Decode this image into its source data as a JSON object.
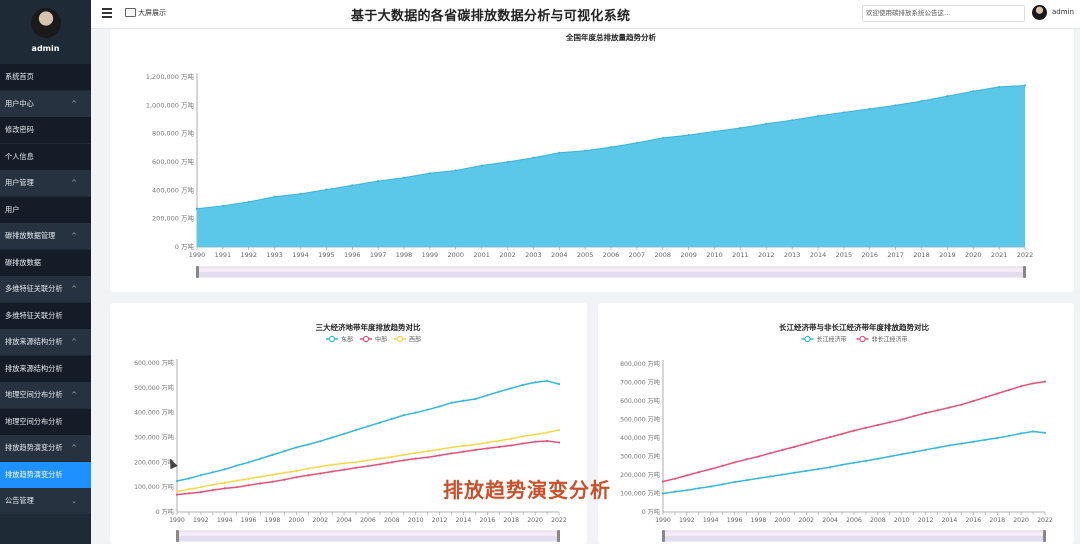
{
  "sidebar": {
    "username": "admin",
    "items": [
      {
        "label": "系统首页",
        "kind": "sub",
        "chevron": ""
      },
      {
        "label": "用户中心",
        "kind": "group",
        "chevron": "^"
      },
      {
        "label": "修改密码",
        "kind": "sub",
        "chevron": ""
      },
      {
        "label": "个人信息",
        "kind": "sub",
        "chevron": ""
      },
      {
        "label": "用户管理",
        "kind": "group",
        "chevron": "^"
      },
      {
        "label": "用户",
        "kind": "sub",
        "chevron": ""
      },
      {
        "label": "碳排放数据管理",
        "kind": "group",
        "chevron": "^"
      },
      {
        "label": "碳排放数据",
        "kind": "sub",
        "chevron": ""
      },
      {
        "label": "多维特征关联分析",
        "kind": "group",
        "chevron": "^"
      },
      {
        "label": "多维特征关联分析",
        "kind": "sub",
        "chevron": ""
      },
      {
        "label": "排放来源结构分析",
        "kind": "group",
        "chevron": "^"
      },
      {
        "label": "排放来源结构分析",
        "kind": "sub",
        "chevron": ""
      },
      {
        "label": "地理空间分布分析",
        "kind": "group",
        "chevron": "^"
      },
      {
        "label": "地理空间分布分析",
        "kind": "sub",
        "chevron": ""
      },
      {
        "label": "排放趋势演变分析",
        "kind": "group",
        "chevron": "^"
      },
      {
        "label": "排放趋势演变分析",
        "kind": "active",
        "chevron": ""
      },
      {
        "label": "公告管理",
        "kind": "group",
        "chevron": "⌄"
      }
    ]
  },
  "header": {
    "screen_label": "大屏展示",
    "title": "基于大数据的各省碳排放数据分析与可视化系统",
    "notice": "欢迎使用碳排放系统公告这...",
    "username": "admin"
  },
  "overlay_text": "排放趋势演变分析",
  "colors": {
    "area": "#5bc8ea",
    "east": "#37b8d6",
    "central": "#e2537a",
    "west": "#f2d94a",
    "yangtze": "#37b8d6",
    "non_yangtze": "#e2537a"
  },
  "chart_data": [
    {
      "type": "area",
      "title": "全国年度总排放量趋势分析",
      "x": [
        1990,
        1991,
        1992,
        1993,
        1994,
        1995,
        1996,
        1997,
        1998,
        1999,
        2000,
        2001,
        2002,
        2003,
        2004,
        2005,
        2006,
        2007,
        2008,
        2009,
        2010,
        2011,
        2012,
        2013,
        2014,
        2015,
        2016,
        2017,
        2018,
        2019,
        2020,
        2021,
        2022
      ],
      "series": [
        {
          "values": [
            270000,
            290000,
            318000,
            355000,
            375000,
            405000,
            435000,
            465000,
            490000,
            520000,
            540000,
            575000,
            600000,
            630000,
            665000,
            680000,
            705000,
            735000,
            770000,
            790000,
            815000,
            840000,
            870000,
            895000,
            925000,
            950000,
            975000,
            1000000,
            1030000,
            1065000,
            1100000,
            1130000,
            1140000
          ]
        }
      ],
      "ylim": [
        0,
        1200000
      ],
      "yticks": [
        "0 万吨",
        "200,000 万吨",
        "400,000 万吨",
        "600,000 万吨",
        "800,000 万吨",
        "1,000,000 万吨",
        "1,200,000 万吨"
      ],
      "grid": false
    },
    {
      "type": "line",
      "title": "三大经济地带年度排放趋势对比",
      "x": [
        1990,
        1991,
        1992,
        1993,
        1994,
        1995,
        1996,
        1997,
        1998,
        1999,
        2000,
        2001,
        2002,
        2003,
        2004,
        2005,
        2006,
        2007,
        2008,
        2009,
        2010,
        2011,
        2012,
        2013,
        2014,
        2015,
        2016,
        2017,
        2018,
        2019,
        2020,
        2021,
        2022
      ],
      "series": [
        {
          "name": "东部",
          "values": [
            125000,
            135000,
            148000,
            160000,
            172000,
            187000,
            200000,
            215000,
            230000,
            245000,
            260000,
            272000,
            285000,
            300000,
            315000,
            330000,
            345000,
            360000,
            375000,
            390000,
            400000,
            412000,
            425000,
            440000,
            448000,
            455000,
            470000,
            485000,
            498000,
            512000,
            522000,
            528000,
            515000
          ]
        },
        {
          "name": "中部",
          "values": [
            70000,
            75000,
            80000,
            88000,
            95000,
            100000,
            108000,
            115000,
            122000,
            130000,
            140000,
            148000,
            155000,
            163000,
            170000,
            178000,
            185000,
            192000,
            200000,
            208000,
            215000,
            220000,
            228000,
            236000,
            243000,
            250000,
            256000,
            262000,
            268000,
            276000,
            283000,
            286000,
            280000
          ]
        },
        {
          "name": "西部",
          "values": [
            82000,
            92000,
            100000,
            110000,
            118000,
            126000,
            134000,
            142000,
            150000,
            158000,
            165000,
            175000,
            183000,
            190000,
            196000,
            200000,
            208000,
            215000,
            222000,
            230000,
            238000,
            245000,
            252000,
            260000,
            266000,
            272000,
            280000,
            287000,
            295000,
            305000,
            312000,
            320000,
            330000
          ]
        }
      ],
      "ylim": [
        0,
        600000
      ],
      "yticks": [
        "0 万吨",
        "100,000 万吨",
        "200,000 万吨",
        "300,000 万吨",
        "400,000 万吨",
        "500,000 万吨",
        "600,000 万吨"
      ],
      "legend": "top-center",
      "grid": false
    },
    {
      "type": "line",
      "title": "长江经济带与非长江经济带年度排放趋势对比",
      "x": [
        1990,
        1991,
        1992,
        1993,
        1994,
        1995,
        1996,
        1997,
        1998,
        1999,
        2000,
        2001,
        2002,
        2003,
        2004,
        2005,
        2006,
        2007,
        2008,
        2009,
        2010,
        2011,
        2012,
        2013,
        2014,
        2015,
        2016,
        2017,
        2018,
        2019,
        2020,
        2021,
        2022
      ],
      "series": [
        {
          "name": "长江经济带",
          "values": [
            100000,
            110000,
            118000,
            128000,
            138000,
            150000,
            162000,
            172000,
            182000,
            192000,
            202000,
            212000,
            222000,
            232000,
            242000,
            255000,
            266000,
            276000,
            288000,
            300000,
            312000,
            324000,
            336000,
            348000,
            360000,
            370000,
            380000,
            390000,
            400000,
            412000,
            425000,
            435000,
            428000
          ]
        },
        {
          "name": "非长江经济带",
          "values": [
            165000,
            180000,
            198000,
            215000,
            232000,
            250000,
            268000,
            285000,
            300000,
            318000,
            335000,
            352000,
            370000,
            388000,
            405000,
            422000,
            440000,
            455000,
            470000,
            485000,
            500000,
            518000,
            535000,
            550000,
            565000,
            580000,
            600000,
            620000,
            640000,
            660000,
            680000,
            695000,
            705000
          ]
        }
      ],
      "ylim": [
        0,
        800000
      ],
      "yticks": [
        "0 万吨",
        "100,000 万吨",
        "200,000 万吨",
        "300,000 万吨",
        "400,000 万吨",
        "500,000 万吨",
        "600,000 万吨",
        "700,000 万吨",
        "800,000 万吨"
      ],
      "legend": "top-center",
      "grid": false
    }
  ]
}
